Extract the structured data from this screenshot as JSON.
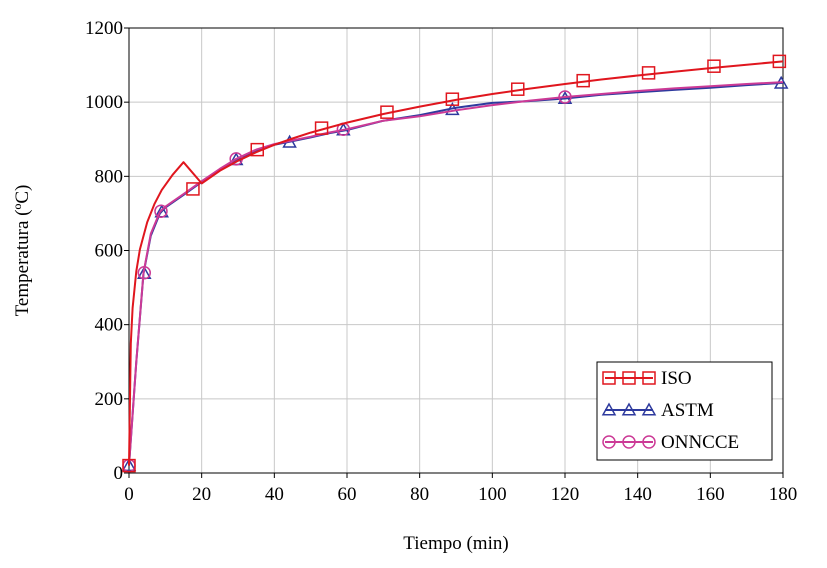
{
  "chart_data": {
    "type": "line",
    "title": "",
    "xlabel": "Tiempo (min)",
    "ylabel": "Temperatura (ºC)",
    "xlim": [
      0,
      180
    ],
    "ylim": [
      0,
      1200
    ],
    "x_ticks": [
      "0",
      "20",
      "40",
      "60",
      "80",
      "100",
      "120",
      "140",
      "160",
      "180"
    ],
    "y_ticks": [
      "0",
      "200",
      "400",
      "600",
      "800",
      "1000",
      "1200"
    ],
    "grid": true,
    "legend_position": "bottom-right",
    "series": [
      {
        "name": "ISO",
        "color": "#e0161e",
        "marker": "square",
        "curve": {
          "x": [
            0,
            0.5,
            1,
            2,
            3,
            5,
            7,
            9,
            12,
            15,
            20,
            25,
            30,
            35,
            40,
            45,
            50,
            60,
            70,
            80,
            90,
            100,
            110,
            120,
            130,
            140,
            150,
            160,
            170,
            180
          ],
          "y": [
            20,
            349,
            445,
            544,
            603,
            676,
            725,
            763,
            804,
            838,
            781,
            815,
            842,
            865,
            885,
            902,
            918,
            945,
            968,
            988,
            1006,
            1022,
            1036,
            1049,
            1061,
            1072,
            1082,
            1092,
            1101,
            1110
          ]
        },
        "markers": {
          "x": [
            0,
            17.6,
            35.3,
            53,
            71,
            89,
            107,
            125,
            143,
            161,
            179
          ],
          "y": [
            20,
            766,
            872,
            930,
            973,
            1008,
            1035,
            1058,
            1079,
            1097,
            1110
          ]
        }
      },
      {
        "name": "ASTM",
        "color": "#2e3a9e",
        "marker": "triangle",
        "curve": {
          "x": [
            0,
            2,
            4,
            6,
            8.5,
            10,
            15,
            20,
            25,
            29.5,
            35,
            40,
            45,
            50,
            55,
            60,
            70,
            80,
            90,
            100,
            110,
            120,
            130,
            140,
            150,
            160,
            170,
            180
          ],
          "y": [
            20,
            300,
            538,
            640,
            700,
            716,
            750,
            785,
            818,
            845,
            870,
            885,
            895,
            905,
            916,
            925,
            950,
            965,
            985,
            998,
            1003,
            1010,
            1020,
            1027,
            1033,
            1039,
            1046,
            1052
          ]
        },
        "markers": {
          "x": [
            0,
            4.2,
            9,
            29.5,
            44.2,
            59,
            89,
            120,
            179.5
          ],
          "y": [
            20,
            538,
            704,
            845,
            892,
            925,
            980,
            1010,
            1051
          ]
        }
      },
      {
        "name": "ONNCCE",
        "color": "#cc3a96",
        "marker": "circle",
        "curve": {
          "x": [
            0,
            2,
            4,
            6,
            8.5,
            10,
            15,
            20,
            25,
            29.5,
            35,
            40,
            45,
            50,
            55,
            60,
            70,
            80,
            90,
            100,
            110,
            120,
            130,
            140,
            150,
            160,
            170,
            180
          ],
          "y": [
            20,
            300,
            540,
            645,
            704,
            718,
            752,
            787,
            820,
            847,
            872,
            887,
            897,
            907,
            918,
            927,
            950,
            962,
            978,
            992,
            1004,
            1014,
            1022,
            1030,
            1037,
            1043,
            1049,
            1054
          ]
        },
        "markers": {
          "x": [
            0,
            4.2,
            8.8,
            29.5,
            59,
            120
          ],
          "y": [
            20,
            540,
            706,
            847,
            927,
            1014
          ]
        }
      }
    ]
  }
}
